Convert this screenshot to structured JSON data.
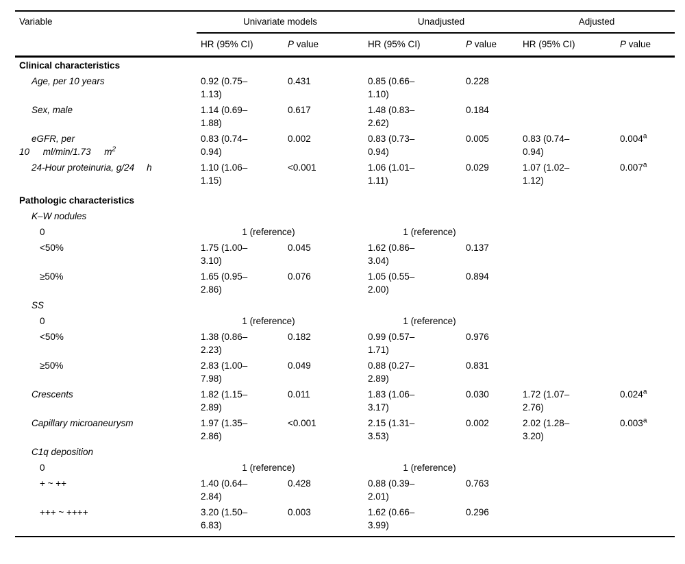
{
  "colors": {
    "text": "#000000",
    "background": "#ffffff"
  },
  "table": {
    "headers": {
      "variable": "Variable",
      "groups": [
        "Univariate models",
        "Unadjusted",
        "Adjusted"
      ],
      "hr": "HR (95% CI)",
      "p_italic": "P",
      "p_rest": " value"
    },
    "rows": [
      {
        "t": "section",
        "label": "Clinical characteristics"
      },
      {
        "t": "data",
        "ind": 1,
        "it": true,
        "label": "Age, per 10 years",
        "uni_hr1": "0.92 (0.75–",
        "uni_hr2": "1.13)",
        "uni_p": "0.431",
        "un_hr1": "0.85 (0.66–",
        "un_hr2": "1.10)",
        "un_p": "0.228"
      },
      {
        "t": "data",
        "ind": 1,
        "it": true,
        "label": "Sex, male",
        "uni_hr1": "1.14 (0.69–",
        "uni_hr2": "1.88)",
        "uni_p": "0.617",
        "un_hr1": "1.48 (0.83–",
        "un_hr2": "2.62)",
        "un_p": "0.184"
      },
      {
        "t": "data",
        "ind": 1,
        "it": true,
        "label": "eGFR, per",
        "label2": "10 ml/min/1.73 m",
        "label2sup": "2",
        "uni_hr1": "0.83 (0.74–",
        "uni_hr2": "0.94)",
        "uni_p": "0.002",
        "un_hr1": "0.83 (0.73–",
        "un_hr2": "0.94)",
        "un_p": "0.005",
        "adj_hr1": "0.83 (0.74–",
        "adj_hr2": "0.94)",
        "adj_p": "0.004",
        "adj_sup": "a"
      },
      {
        "t": "data",
        "ind": 1,
        "it": true,
        "label": "24-Hour proteinuria, g/24",
        "tail": "h",
        "uni_hr1": "1.10 (1.06–",
        "uni_hr2": "1.15)",
        "uni_p": "<0.001",
        "un_hr1": "1.06 (1.01–",
        "un_hr2": "1.11)",
        "un_p": "0.029",
        "adj_hr1": "1.07 (1.02–",
        "adj_hr2": "1.12)",
        "adj_p": "0.007",
        "adj_sup": "a"
      },
      {
        "t": "section",
        "label": "Pathologic characteristics",
        "space": true
      },
      {
        "t": "data",
        "ind": 1,
        "it": true,
        "label": "K–W nodules"
      },
      {
        "t": "ref",
        "ind": 2,
        "label": "0",
        "ref": "1 (reference)"
      },
      {
        "t": "data",
        "ind": 2,
        "label": "<50%",
        "uni_hr1": "1.75 (1.00–",
        "uni_hr2": "3.10)",
        "uni_p": "0.045",
        "un_hr1": "1.62 (0.86–",
        "un_hr2": "3.04)",
        "un_p": "0.137"
      },
      {
        "t": "data",
        "ind": 2,
        "label": "≥50%",
        "uni_hr1": "1.65 (0.95–",
        "uni_hr2": "2.86)",
        "uni_p": "0.076",
        "un_hr1": "1.05 (0.55–",
        "un_hr2": "2.00)",
        "un_p": "0.894"
      },
      {
        "t": "data",
        "ind": 1,
        "it": true,
        "label": "SS"
      },
      {
        "t": "ref",
        "ind": 2,
        "label": "0",
        "ref": "1 (reference)"
      },
      {
        "t": "data",
        "ind": 2,
        "label": "<50%",
        "uni_hr1": "1.38 (0.86–",
        "uni_hr2": "2.23)",
        "uni_p": "0.182",
        "un_hr1": "0.99 (0.57–",
        "un_hr2": "1.71)",
        "un_p": "0.976"
      },
      {
        "t": "data",
        "ind": 2,
        "label": "≥50%",
        "uni_hr1": "2.83 (1.00–",
        "uni_hr2": "7.98)",
        "uni_p": "0.049",
        "un_hr1": "0.88 (0.27–",
        "un_hr2": "2.89)",
        "un_p": "0.831"
      },
      {
        "t": "data",
        "ind": 1,
        "it": true,
        "label": "Crescents",
        "uni_hr1": "1.82 (1.15–",
        "uni_hr2": "2.89)",
        "uni_p": "0.011",
        "un_hr1": "1.83 (1.06–",
        "un_hr2": "3.17)",
        "un_p": "0.030",
        "adj_hr1": "1.72 (1.07–",
        "adj_hr2": "2.76)",
        "adj_p": "0.024",
        "adj_sup": "a"
      },
      {
        "t": "data",
        "ind": 1,
        "it": true,
        "label": "Capillary microaneurysm",
        "uni_hr1": "1.97 (1.35–",
        "uni_hr2": "2.86)",
        "uni_p": "<0.001",
        "un_hr1": "2.15 (1.31–",
        "un_hr2": "3.53)",
        "un_p": "0.002",
        "adj_hr1": "2.02 (1.28–",
        "adj_hr2": "3.20)",
        "adj_p": "0.003",
        "adj_sup": "a"
      },
      {
        "t": "data",
        "ind": 1,
        "it": true,
        "label": "C1q deposition"
      },
      {
        "t": "ref",
        "ind": 2,
        "label": "0",
        "ref": "1 (reference)"
      },
      {
        "t": "data",
        "ind": 2,
        "label": "+ ~ ++",
        "uni_hr1": "1.40 (0.64–",
        "uni_hr2": "2.84)",
        "uni_p": "0.428",
        "un_hr1": "0.88 (0.39–",
        "un_hr2": "2.01)",
        "un_p": "0.763"
      },
      {
        "t": "data",
        "ind": 2,
        "label": "+++ ~ ++++",
        "uni_hr1": "3.20 (1.50–",
        "uni_hr2": "6.83)",
        "uni_p": "0.003",
        "un_hr1": "1.62 (0.66–",
        "un_hr2": "3.99)",
        "un_p": "0.296"
      }
    ]
  }
}
